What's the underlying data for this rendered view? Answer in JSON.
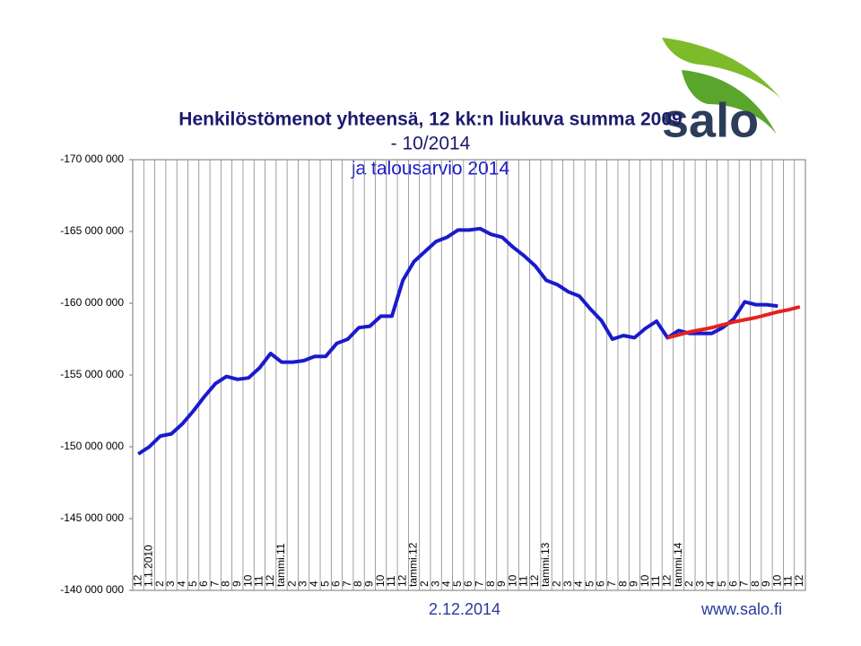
{
  "chart_data": {
    "type": "line",
    "title": [
      "Henkilöstömenot yhteensä, 12 kk:n liukuva summa 2009",
      "- 10/2014",
      "ja talousarvio  2014"
    ],
    "categories": [
      "12",
      "1.1.2010",
      "2",
      "3",
      "4",
      "5",
      "6",
      "7",
      "8",
      "9",
      "10",
      "11",
      "12",
      "tammi.11",
      "2",
      "3",
      "4",
      "5",
      "6",
      "7",
      "8",
      "9",
      "10",
      "11",
      "12",
      "tammi.12",
      "2",
      "3",
      "4",
      "5",
      "6",
      "7",
      "8",
      "9",
      "10",
      "11",
      "12",
      "tammi.13",
      "2",
      "3",
      "4",
      "5",
      "6",
      "7",
      "8",
      "9",
      "10",
      "11",
      "12",
      "tammi.14",
      "2",
      "3",
      "4",
      "5",
      "6",
      "7",
      "8",
      "9",
      "10",
      "11",
      "12"
    ],
    "series": [
      {
        "color": "#1a1acc",
        "values": [
          -149500000,
          -150000000,
          -150750000,
          -150900000,
          -151600000,
          -152500000,
          -153500000,
          -154400000,
          -154900000,
          -154700000,
          -154800000,
          -155500000,
          -156500000,
          -155900000,
          -155900000,
          -156000000,
          -156300000,
          -156300000,
          -157200000,
          -157500000,
          -158300000,
          -158400000,
          -159100000,
          -159100000,
          -161600000,
          -162900000,
          -163600000,
          -164300000,
          -164600000,
          -165100000,
          -165100000,
          -165200000,
          -164800000,
          -164600000,
          -163900000,
          -163300000,
          -162600000,
          -161600000,
          -161300000,
          -160800000,
          -160500000,
          -159600000,
          -158800000,
          -157500000,
          -157750000,
          -157600000,
          -158250000,
          -158750000,
          -157600000,
          -158100000,
          -157900000,
          -157900000,
          -157900000,
          -158300000,
          -158900000,
          -160100000,
          -159900000,
          -159900000,
          -159800000,
          null,
          null
        ]
      },
      {
        "color": "#e52222",
        "values": [
          null,
          null,
          null,
          null,
          null,
          null,
          null,
          null,
          null,
          null,
          null,
          null,
          null,
          null,
          null,
          null,
          null,
          null,
          null,
          null,
          null,
          null,
          null,
          null,
          null,
          null,
          null,
          null,
          null,
          null,
          null,
          null,
          null,
          null,
          null,
          null,
          null,
          null,
          null,
          null,
          null,
          null,
          null,
          null,
          null,
          null,
          null,
          null,
          -157600000,
          -157800000,
          -158000000,
          -158150000,
          -158300000,
          -158500000,
          -158700000,
          -158850000,
          -159000000,
          -159200000,
          -159400000,
          -159550000,
          -159750000
        ]
      }
    ],
    "ylim": [
      -140000000,
      -170000000
    ],
    "yticks": [
      {
        "value": -140000000,
        "label": "-140 000 000"
      },
      {
        "value": -145000000,
        "label": "-145 000 000"
      },
      {
        "value": -150000000,
        "label": "-150 000 000"
      },
      {
        "value": -155000000,
        "label": "-155 000 000"
      },
      {
        "value": -160000000,
        "label": "-160 000 000"
      },
      {
        "value": -165000000,
        "label": "-165 000 000"
      },
      {
        "value": -170000000,
        "label": "-170 000 000"
      }
    ]
  },
  "footer": {
    "date": "2.12.2014",
    "url": "www.salo.fi"
  },
  "logo": "salo"
}
